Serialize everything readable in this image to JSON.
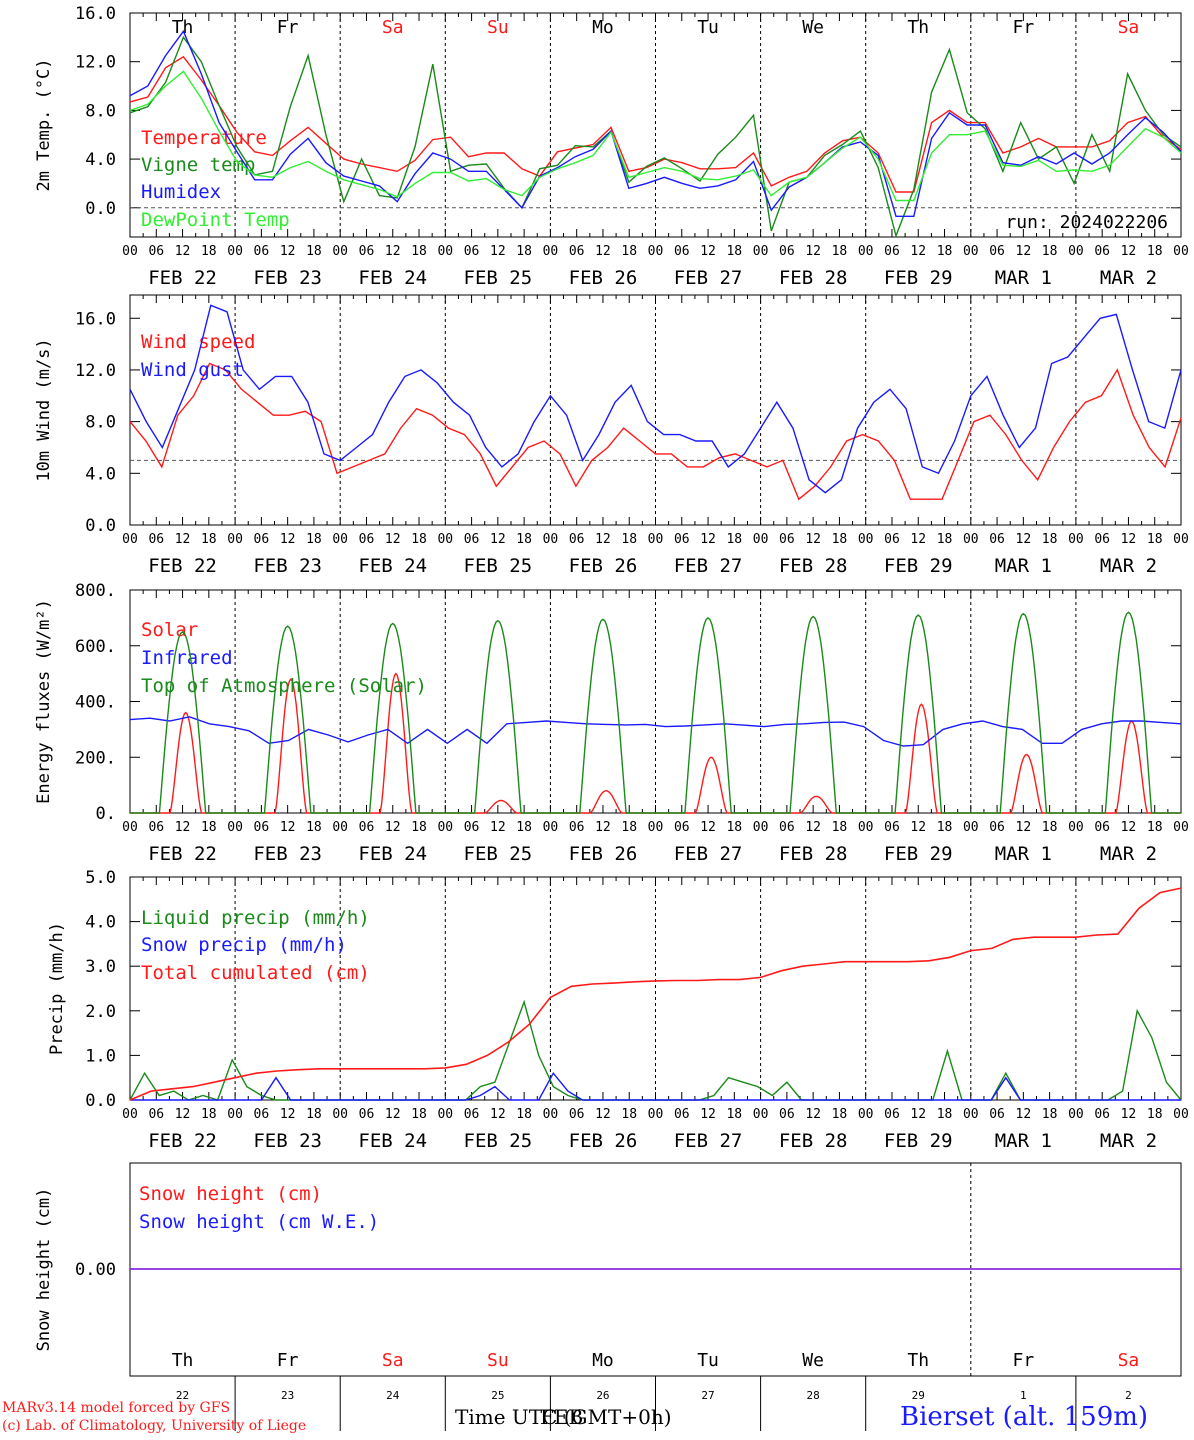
{
  "colors": {
    "red": "#ff1a1a",
    "green": "#1a8a1a",
    "blue": "#1a1aff",
    "lightgreen": "#33ee33",
    "purple": "#8a2be2",
    "axis": "#000000"
  },
  "axis": {
    "hours": [
      "00",
      "06",
      "12",
      "18"
    ],
    "end_hour": "00",
    "date_labels": [
      "FEB 22",
      "FEB 23",
      "FEB 24",
      "FEB 25",
      "FEB 26",
      "FEB 27",
      "FEB 28",
      "FEB 29",
      "MAR 1",
      "MAR 2"
    ],
    "weekdays": [
      "Th",
      "Fr",
      "Sa",
      "Su",
      "Mo",
      "Tu",
      "We",
      "Th",
      "Fr",
      "Sa"
    ],
    "weekend_flags": [
      false,
      false,
      true,
      true,
      false,
      false,
      false,
      false,
      false,
      true
    ],
    "day_numbers": [
      "22",
      "23",
      "24",
      "25",
      "26",
      "27",
      "28",
      "29",
      "1",
      "2"
    ]
  },
  "footer": {
    "model_line": "MARv3.14 model forced by GFS",
    "credit_line": "(c) Lab. of Climatology, University of Liege",
    "time_label": "Time UTC (GMT+0h)",
    "overprint_label": "FEB",
    "station": "Bierset (alt. 159m)"
  },
  "chart_data": [
    {
      "type": "line",
      "ylabel": "2m Temp. (°C)",
      "yticks": [
        "16.0",
        "12.0",
        "8.0",
        "4.0",
        "0.0"
      ],
      "ylim": [
        -2.4,
        16
      ],
      "ref_line": 0,
      "run_label": "run: 2024022206",
      "series": [
        {
          "name": "Temperature",
          "color": "red",
          "values": [
            8.7,
            9.1,
            11.5,
            12.4,
            10.5,
            8.4,
            6.2,
            4.6,
            4.3,
            5.5,
            6.6,
            5.3,
            4.0,
            3.6,
            3.3,
            3.0,
            3.9,
            5.6,
            5.8,
            4.2,
            4.5,
            4.5,
            3.2,
            2.6,
            4.6,
            4.9,
            5.2,
            6.6,
            3.0,
            3.3,
            4.0,
            3.7,
            3.2,
            3.2,
            3.3,
            4.5,
            1.8,
            2.5,
            3.0,
            4.5,
            5.5,
            5.8,
            4.5,
            1.3,
            1.3,
            7.0,
            8.0,
            7.0,
            7.0,
            4.5,
            5.0,
            5.7,
            5.0,
            5.0,
            5.0,
            5.5,
            7.0,
            7.5,
            5.8,
            4.8
          ]
        },
        {
          "name": "Vigne temp",
          "color": "green",
          "values": [
            7.8,
            8.3,
            10.3,
            14.0,
            12.0,
            8.4,
            5.0,
            2.7,
            3.0,
            8.3,
            12.5,
            6.0,
            0.5,
            4.0,
            1.0,
            0.8,
            5.0,
            11.8,
            3.0,
            3.5,
            3.6,
            1.6,
            0.0,
            3.2,
            3.5,
            5.1,
            5.0,
            6.3,
            2.1,
            3.4,
            4.1,
            3.2,
            2.2,
            4.4,
            5.8,
            7.6,
            -1.9,
            2.1,
            2.5,
            4.3,
            5.2,
            6.3,
            3.3,
            -2.3,
            1.5,
            9.5,
            13.0,
            7.8,
            6.5,
            3.0,
            7.0,
            4.0,
            5.0,
            2.0,
            6.0,
            3.0,
            11.0,
            8.0,
            6.0,
            5.0
          ]
        },
        {
          "name": "Humidex",
          "color": "blue",
          "values": [
            9.2,
            10.0,
            12.5,
            14.5,
            11.0,
            7.0,
            4.6,
            2.3,
            2.3,
            4.4,
            5.7,
            3.7,
            2.6,
            2.2,
            1.8,
            0.5,
            2.8,
            4.5,
            4.0,
            3.0,
            3.0,
            1.5,
            0.0,
            2.6,
            3.3,
            4.2,
            4.8,
            6.3,
            1.6,
            2.0,
            2.5,
            2.0,
            1.6,
            1.8,
            2.3,
            3.8,
            -0.2,
            1.7,
            2.5,
            3.7,
            5.0,
            5.4,
            4.3,
            -0.7,
            -0.7,
            5.7,
            7.8,
            6.8,
            6.8,
            3.7,
            3.5,
            4.2,
            3.6,
            4.5,
            3.6,
            4.5,
            6.0,
            7.4,
            6.2,
            4.6
          ]
        },
        {
          "name": "DewPoint Temp",
          "color": "lightgreen",
          "values": [
            8.0,
            8.5,
            10.0,
            11.2,
            9.0,
            6.3,
            3.8,
            2.7,
            2.5,
            3.3,
            3.8,
            3.0,
            2.3,
            1.9,
            1.5,
            0.9,
            2.0,
            2.9,
            2.9,
            2.2,
            2.4,
            1.5,
            1.0,
            2.5,
            3.2,
            3.7,
            4.3,
            6.2,
            2.5,
            2.9,
            3.3,
            3.0,
            2.4,
            2.3,
            2.6,
            3.1,
            1.0,
            2.1,
            2.5,
            3.7,
            4.9,
            5.8,
            4.0,
            0.6,
            0.6,
            4.5,
            6.0,
            6.0,
            6.3,
            3.5,
            3.4,
            3.9,
            3.0,
            3.1,
            3.0,
            3.5,
            5.0,
            6.5,
            5.8,
            4.5
          ]
        }
      ]
    },
    {
      "type": "line",
      "ylabel": "10m Wind (m/s)",
      "yticks": [
        "16.0",
        "12.0",
        "8.0",
        "4.0",
        "0.0"
      ],
      "ylim": [
        0,
        17.8
      ],
      "ref_line": 5,
      "series": [
        {
          "name": "Wind speed",
          "color": "red",
          "values": [
            8.0,
            6.5,
            4.5,
            8.5,
            10.0,
            12.5,
            12.0,
            10.5,
            9.5,
            8.5,
            8.5,
            8.8,
            8.0,
            4.0,
            4.5,
            5.0,
            5.5,
            7.5,
            9.0,
            8.5,
            7.5,
            7.0,
            5.5,
            3.0,
            4.5,
            6.0,
            6.5,
            5.5,
            3.0,
            5.0,
            6.0,
            7.5,
            6.5,
            5.5,
            5.5,
            4.5,
            4.5,
            5.2,
            5.5,
            5.0,
            4.5,
            5.0,
            2.0,
            3.0,
            4.5,
            6.5,
            7.0,
            6.5,
            5.0,
            2.0,
            2.0,
            2.0,
            5.0,
            8.0,
            8.5,
            7.0,
            5.0,
            3.5,
            6.0,
            8.0,
            9.5,
            10.0,
            12.0,
            8.5,
            6.0,
            4.5,
            8.3
          ]
        },
        {
          "name": "Wind gust",
          "color": "blue",
          "values": [
            10.5,
            8.0,
            6.0,
            9.0,
            12.0,
            17.0,
            16.5,
            12.0,
            10.5,
            11.5,
            11.5,
            9.5,
            5.5,
            5.0,
            6.0,
            7.0,
            9.5,
            11.5,
            12.0,
            11.0,
            9.5,
            8.5,
            6.0,
            4.5,
            5.5,
            8.0,
            10.0,
            8.5,
            5.0,
            7.0,
            9.5,
            10.8,
            8.0,
            7.0,
            7.0,
            6.5,
            6.5,
            4.5,
            5.5,
            7.5,
            9.5,
            7.5,
            3.5,
            2.5,
            3.5,
            7.5,
            9.5,
            10.5,
            9.0,
            4.5,
            4.0,
            6.5,
            10.0,
            11.5,
            8.5,
            6.0,
            7.5,
            12.5,
            13.0,
            14.5,
            16.0,
            16.3,
            12.0,
            8.0,
            7.5,
            12.0
          ]
        }
      ]
    },
    {
      "type": "line",
      "ylabel": "Energy fluxes (W/m²)",
      "yticks": [
        "800.",
        "600.",
        "400.",
        "200.",
        "0."
      ],
      "ylim": [
        0,
        800
      ],
      "series": [
        {
          "name": "Solar",
          "color": "red",
          "peaks": [
            360,
            480,
            500,
            45,
            80,
            200,
            60,
            390,
            210,
            330
          ]
        },
        {
          "name": "Infrared",
          "color": "blue",
          "values": [
            335,
            340,
            330,
            345,
            320,
            310,
            295,
            250,
            260,
            300,
            280,
            255,
            280,
            300,
            250,
            300,
            250,
            300,
            250,
            320,
            325,
            330,
            325,
            320,
            318,
            316,
            318,
            310,
            312,
            316,
            320,
            315,
            310,
            318,
            320,
            325,
            326,
            310,
            260,
            240,
            245,
            300,
            320,
            330,
            310,
            300,
            250,
            250,
            300,
            320,
            330,
            330,
            325,
            320
          ]
        },
        {
          "name": "Top of Atmosphere (Solar)",
          "color": "green",
          "peaks": [
            650,
            670,
            680,
            690,
            695,
            700,
            705,
            710,
            715,
            720
          ]
        }
      ]
    },
    {
      "type": "line",
      "ylabel": "Precip (mm/h)",
      "yticks": [
        "5.0",
        "4.0",
        "3.0",
        "2.0",
        "1.0",
        "0.0"
      ],
      "ylim": [
        0,
        5
      ],
      "series": [
        {
          "name": "Liquid precip (mm/h)",
          "color": "green",
          "values": [
            0.0,
            0.6,
            0.1,
            0.2,
            0.0,
            0.1,
            0.0,
            0.9,
            0.3,
            0.1,
            0.0,
            0.0,
            0.0,
            0.0,
            0.0,
            0.0,
            0.0,
            0.0,
            0.0,
            0.0,
            0.0,
            0.0,
            0.0,
            0.0,
            0.3,
            0.4,
            1.3,
            2.2,
            1.0,
            0.3,
            0.1,
            0.0,
            0.0,
            0.0,
            0.0,
            0.0,
            0.0,
            0.0,
            0.0,
            0.0,
            0.1,
            0.5,
            0.4,
            0.3,
            0.1,
            0.4,
            0.0,
            0.0,
            0.0,
            0.0,
            0.0,
            0.0,
            0.0,
            0.0,
            0.0,
            0.0,
            1.1,
            0.0,
            0.0,
            0.0,
            0.6,
            0.0,
            0.0,
            0.0,
            0.0,
            0.0,
            0.0,
            0.0,
            0.2,
            2.0,
            1.4,
            0.4,
            0.0
          ]
        },
        {
          "name": "Snow precip (mm/h)",
          "color": "blue",
          "values": [
            0.0,
            0.0,
            0.0,
            0.0,
            0.0,
            0.0,
            0.0,
            0.0,
            0.0,
            0.0,
            0.5,
            0.0,
            0.0,
            0.0,
            0.0,
            0.0,
            0.0,
            0.0,
            0.0,
            0.0,
            0.0,
            0.0,
            0.0,
            0.0,
            0.1,
            0.3,
            0.0,
            0.0,
            0.0,
            0.6,
            0.2,
            0.0,
            0.0,
            0.0,
            0.0,
            0.0,
            0.0,
            0.0,
            0.0,
            0.0,
            0.0,
            0.0,
            0.0,
            0.0,
            0.0,
            0.0,
            0.0,
            0.0,
            0.0,
            0.0,
            0.0,
            0.0,
            0.0,
            0.0,
            0.0,
            0.0,
            0.0,
            0.0,
            0.0,
            0.0,
            0.5,
            0.0,
            0.0,
            0.0,
            0.0,
            0.0,
            0.0,
            0.0,
            0.0,
            0.0,
            0.0,
            0.0,
            0.0
          ]
        },
        {
          "name": "Total cumulated (cm)",
          "color": "red",
          "values": [
            0.0,
            0.2,
            0.25,
            0.3,
            0.4,
            0.5,
            0.6,
            0.65,
            0.68,
            0.7,
            0.7,
            0.7,
            0.7,
            0.7,
            0.7,
            0.72,
            0.8,
            1.0,
            1.3,
            1.7,
            2.3,
            2.55,
            2.6,
            2.62,
            2.65,
            2.67,
            2.68,
            2.68,
            2.7,
            2.7,
            2.75,
            2.9,
            3.0,
            3.05,
            3.1,
            3.1,
            3.1,
            3.1,
            3.12,
            3.2,
            3.35,
            3.4,
            3.6,
            3.65,
            3.65,
            3.65,
            3.7,
            3.72,
            4.3,
            4.65,
            4.75
          ]
        }
      ]
    },
    {
      "type": "line",
      "ylabel": "Snow height (cm)",
      "yticks": [
        "0.00"
      ],
      "series": [
        {
          "name": "Snow height (cm)",
          "color": "red",
          "values": [
            0,
            0
          ]
        },
        {
          "name": "Snow height (cm W.E.)",
          "color": "blue",
          "values": [
            0,
            0
          ]
        }
      ]
    }
  ]
}
